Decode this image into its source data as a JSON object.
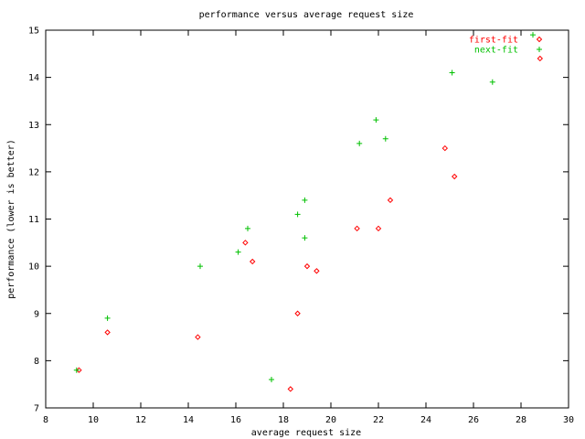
{
  "chart_data": {
    "type": "scatter",
    "title": "performance versus average request size",
    "xlabel": "average request size",
    "ylabel": "performance (lower is better)",
    "xlim": [
      8,
      30
    ],
    "ylim": [
      7,
      15
    ],
    "x_ticks": [
      8,
      10,
      12,
      14,
      16,
      18,
      20,
      22,
      24,
      26,
      28,
      30
    ],
    "y_ticks": [
      7,
      8,
      9,
      10,
      11,
      12,
      13,
      14,
      15
    ],
    "grid": false,
    "legend_position": "top-right",
    "series": [
      {
        "name": "first-fit",
        "color": "#ff0000",
        "marker": "diamond",
        "points": [
          [
            9.4,
            7.8
          ],
          [
            10.6,
            8.6
          ],
          [
            14.4,
            8.5
          ],
          [
            16.4,
            10.5
          ],
          [
            16.7,
            10.1
          ],
          [
            18.3,
            7.4
          ],
          [
            18.6,
            9.0
          ],
          [
            19.0,
            10.0
          ],
          [
            19.4,
            9.9
          ],
          [
            21.1,
            10.8
          ],
          [
            22.0,
            10.8
          ],
          [
            22.5,
            11.4
          ],
          [
            24.8,
            12.5
          ],
          [
            25.2,
            11.9
          ],
          [
            28.8,
            14.4
          ]
        ]
      },
      {
        "name": "next-fit",
        "color": "#00c000",
        "marker": "plus",
        "points": [
          [
            9.3,
            7.8
          ],
          [
            10.6,
            8.9
          ],
          [
            14.5,
            10.0
          ],
          [
            16.1,
            10.3
          ],
          [
            16.5,
            10.8
          ],
          [
            17.5,
            7.6
          ],
          [
            18.6,
            11.1
          ],
          [
            18.9,
            11.4
          ],
          [
            18.9,
            10.6
          ],
          [
            21.2,
            12.6
          ],
          [
            21.9,
            13.1
          ],
          [
            22.3,
            12.7
          ],
          [
            25.1,
            14.1
          ],
          [
            26.8,
            13.9
          ],
          [
            28.5,
            14.9
          ]
        ]
      }
    ]
  }
}
